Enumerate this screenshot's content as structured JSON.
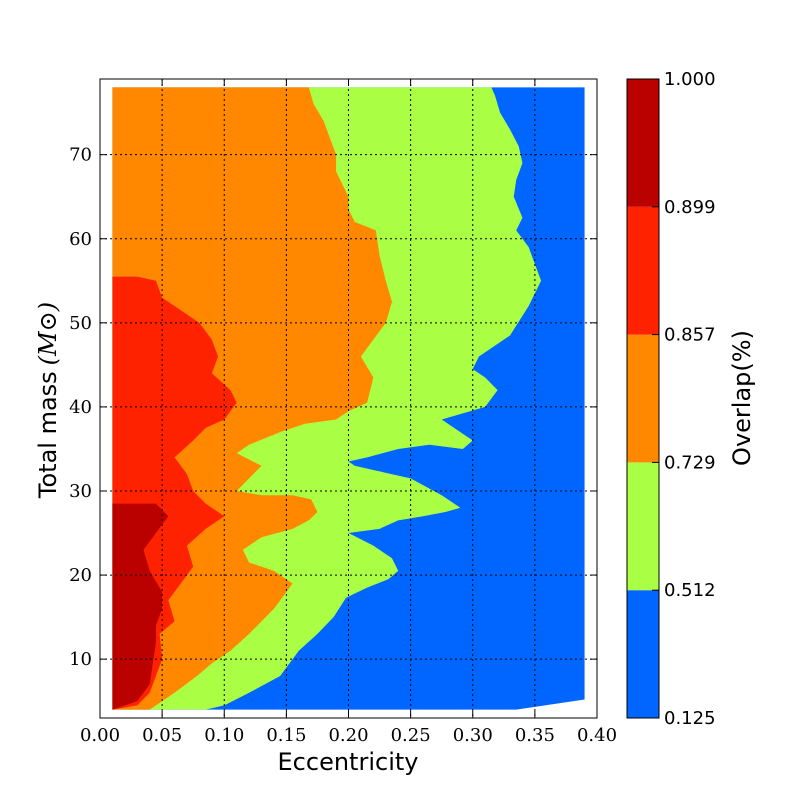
{
  "chart_data": {
    "type": "contourf",
    "title": "",
    "xlabel": "Eccentricity",
    "ylabel": "Total mass",
    "ylabel_unit": "(M⊙)",
    "colorbar_label": "Overlap(%)",
    "xlim": [
      0.0,
      0.4
    ],
    "ylim": [
      3,
      79
    ],
    "grid": true,
    "x_ticks": [
      "0.00",
      "0.05",
      "0.10",
      "0.15",
      "0.20",
      "0.25",
      "0.30",
      "0.35",
      "0.40"
    ],
    "y_ticks": [
      "10",
      "20",
      "30",
      "40",
      "50",
      "60",
      "70"
    ],
    "levels": [
      {
        "name": "0.125–0.512",
        "color": "#0066ff"
      },
      {
        "name": "0.512–0.729",
        "color": "#aaff44"
      },
      {
        "name": "0.729–0.857",
        "color": "#ff8800"
      },
      {
        "name": "0.857–0.899",
        "color": "#ff2200"
      },
      {
        "name": "0.899–1.000",
        "color": "#bb0000"
      }
    ],
    "colorbar_ticks": [
      "0.125",
      "0.512",
      "0.729",
      "0.857",
      "0.899",
      "1.000"
    ],
    "data_extent": {
      "x": [
        0.01,
        0.39
      ],
      "y": [
        4,
        78
      ]
    },
    "boundaries": [
      {
        "between": "0.512 / 0.729",
        "points": [
          [
            0.085,
            4
          ],
          [
            0.1,
            4.5
          ],
          [
            0.12,
            6
          ],
          [
            0.145,
            8
          ],
          [
            0.16,
            11
          ],
          [
            0.175,
            13
          ],
          [
            0.188,
            15
          ],
          [
            0.198,
            17.3
          ],
          [
            0.215,
            18.5
          ],
          [
            0.232,
            19.5
          ],
          [
            0.24,
            20.5
          ],
          [
            0.235,
            22
          ],
          [
            0.22,
            23.5
          ],
          [
            0.2,
            25
          ],
          [
            0.225,
            25.5
          ],
          [
            0.24,
            26.5
          ],
          [
            0.26,
            27
          ],
          [
            0.278,
            27.5
          ],
          [
            0.29,
            28
          ],
          [
            0.275,
            29.5
          ],
          [
            0.25,
            31.5
          ],
          [
            0.22,
            32.5
          ],
          [
            0.205,
            33
          ],
          [
            0.2,
            33.5
          ],
          [
            0.215,
            34
          ],
          [
            0.24,
            35
          ],
          [
            0.265,
            35.5
          ],
          [
            0.292,
            35
          ],
          [
            0.3,
            36
          ],
          [
            0.285,
            37.5
          ],
          [
            0.275,
            38.5
          ],
          [
            0.31,
            40
          ],
          [
            0.32,
            42
          ],
          [
            0.31,
            43.5
          ],
          [
            0.3,
            44.5
          ],
          [
            0.305,
            46
          ],
          [
            0.32,
            47.5
          ],
          [
            0.33,
            48.5
          ],
          [
            0.345,
            52
          ],
          [
            0.355,
            55
          ],
          [
            0.35,
            57
          ],
          [
            0.345,
            59
          ],
          [
            0.335,
            61
          ],
          [
            0.34,
            62.5
          ],
          [
            0.333,
            65
          ],
          [
            0.335,
            67
          ],
          [
            0.34,
            69
          ],
          [
            0.337,
            71
          ],
          [
            0.33,
            73
          ],
          [
            0.322,
            75
          ],
          [
            0.318,
            77
          ],
          [
            0.315,
            78
          ]
        ]
      },
      {
        "between": "0.729 / 0.857",
        "points": [
          [
            0.04,
            4
          ],
          [
            0.06,
            6
          ],
          [
            0.078,
            8
          ],
          [
            0.09,
            9.5
          ],
          [
            0.105,
            11
          ],
          [
            0.12,
            13
          ],
          [
            0.14,
            16
          ],
          [
            0.155,
            19
          ],
          [
            0.14,
            20.5
          ],
          [
            0.12,
            21.5
          ],
          [
            0.115,
            23
          ],
          [
            0.13,
            24.5
          ],
          [
            0.155,
            25.5
          ],
          [
            0.168,
            26.5
          ],
          [
            0.175,
            27.5
          ],
          [
            0.17,
            29
          ],
          [
            0.155,
            29.5
          ],
          [
            0.13,
            29.5
          ],
          [
            0.11,
            30
          ],
          [
            0.12,
            31.5
          ],
          [
            0.13,
            33
          ],
          [
            0.11,
            34.5
          ],
          [
            0.12,
            35.5
          ],
          [
            0.145,
            37
          ],
          [
            0.165,
            38
          ],
          [
            0.19,
            38.5
          ],
          [
            0.2,
            39.5
          ],
          [
            0.215,
            40.5
          ],
          [
            0.22,
            43.5
          ],
          [
            0.21,
            46
          ],
          [
            0.22,
            48
          ],
          [
            0.23,
            50
          ],
          [
            0.235,
            52.5
          ],
          [
            0.23,
            55
          ],
          [
            0.225,
            58
          ],
          [
            0.222,
            61
          ],
          [
            0.205,
            62
          ],
          [
            0.2,
            63.5
          ],
          [
            0.2,
            65
          ],
          [
            0.19,
            68
          ],
          [
            0.19,
            70
          ],
          [
            0.185,
            72
          ],
          [
            0.18,
            74
          ],
          [
            0.172,
            76
          ],
          [
            0.168,
            78
          ]
        ]
      },
      {
        "between": "0.857 / 0.899",
        "points": [
          [
            0.01,
            4
          ],
          [
            0.03,
            4.5
          ],
          [
            0.04,
            6
          ],
          [
            0.045,
            8
          ],
          [
            0.05,
            10
          ],
          [
            0.048,
            13
          ],
          [
            0.06,
            14.5
          ],
          [
            0.055,
            17
          ],
          [
            0.065,
            19
          ],
          [
            0.075,
            21
          ],
          [
            0.07,
            23.5
          ],
          [
            0.085,
            25.5
          ],
          [
            0.1,
            27
          ],
          [
            0.085,
            28.5
          ],
          [
            0.075,
            30
          ],
          [
            0.07,
            32
          ],
          [
            0.06,
            34
          ],
          [
            0.075,
            36
          ],
          [
            0.085,
            37.5
          ],
          [
            0.1,
            38.5
          ],
          [
            0.11,
            40.5
          ],
          [
            0.105,
            42
          ],
          [
            0.09,
            44
          ],
          [
            0.095,
            46
          ],
          [
            0.09,
            48
          ],
          [
            0.08,
            50
          ],
          [
            0.065,
            51.5
          ],
          [
            0.05,
            53
          ],
          [
            0.045,
            55
          ],
          [
            0.03,
            55.5
          ],
          [
            0.01,
            55.5
          ]
        ]
      },
      {
        "between": "0.899 / 1.000",
        "points": [
          [
            0.01,
            4
          ],
          [
            0.03,
            5
          ],
          [
            0.04,
            7
          ],
          [
            0.042,
            9
          ],
          [
            0.045,
            12
          ],
          [
            0.045,
            14
          ],
          [
            0.05,
            16
          ],
          [
            0.05,
            18
          ],
          [
            0.04,
            20.5
          ],
          [
            0.035,
            23
          ],
          [
            0.045,
            25
          ],
          [
            0.055,
            27
          ],
          [
            0.045,
            28.5
          ],
          [
            0.03,
            28.5
          ],
          [
            0.01,
            28.5
          ]
        ]
      }
    ],
    "contour_lines": []
  }
}
